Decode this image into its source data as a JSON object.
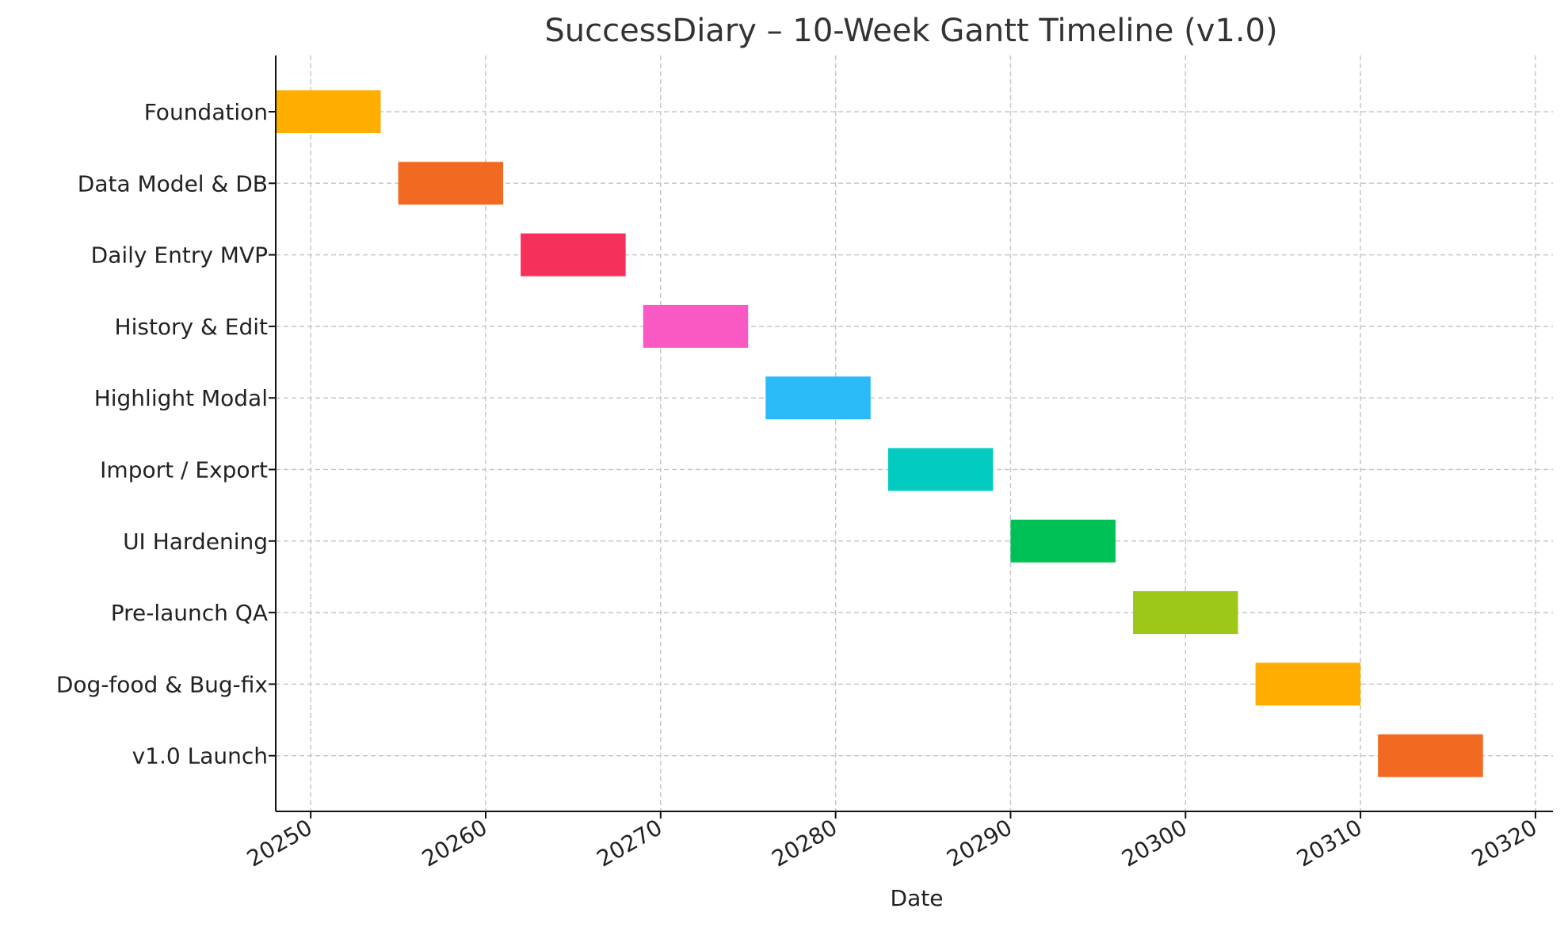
{
  "chart_data": {
    "type": "bar",
    "orientation": "horizontal",
    "title": "SuccessDiary – 10-Week Gantt Timeline (v1.0)",
    "xlabel": "Date",
    "ylabel": "",
    "xlim": [
      20248,
      20321
    ],
    "xticks": [
      20250,
      20260,
      20270,
      20280,
      20290,
      20300,
      20310,
      20320
    ],
    "grid": true,
    "tasks": [
      {
        "name": "Foundation",
        "start": 20248,
        "end": 20254,
        "color": "#FFAE00"
      },
      {
        "name": "Data Model & DB",
        "start": 20255,
        "end": 20261,
        "color": "#F26A22"
      },
      {
        "name": "Daily Entry MVP",
        "start": 20262,
        "end": 20268,
        "color": "#F5305B"
      },
      {
        "name": "History & Edit",
        "start": 20269,
        "end": 20275,
        "color": "#FA58C2"
      },
      {
        "name": "Highlight Modal",
        "start": 20276,
        "end": 20282,
        "color": "#29BAF7"
      },
      {
        "name": "Import / Export",
        "start": 20283,
        "end": 20289,
        "color": "#02CBC1"
      },
      {
        "name": "UI Hardening",
        "start": 20290,
        "end": 20296,
        "color": "#00C155"
      },
      {
        "name": "Pre-launch QA",
        "start": 20297,
        "end": 20303,
        "color": "#9DC81A"
      },
      {
        "name": "Dog-food & Bug-fix",
        "start": 20304,
        "end": 20310,
        "color": "#FFAE00"
      },
      {
        "name": "v1.0 Launch",
        "start": 20311,
        "end": 20317,
        "color": "#F26A22"
      }
    ]
  }
}
